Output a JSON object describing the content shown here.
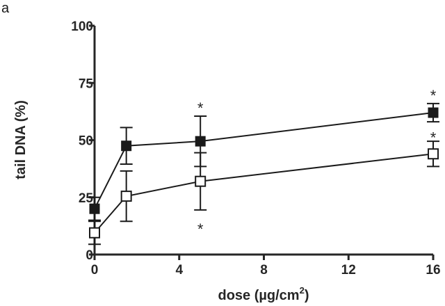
{
  "panel_label": "a",
  "chart_data": {
    "type": "scatter",
    "title": "",
    "xlabel": "dose (µg/cm",
    "xlabel_sup": "2",
    "xlabel_end": ")",
    "ylabel": "tail DNA (%)",
    "xlim": [
      0,
      16
    ],
    "ylim": [
      0,
      100
    ],
    "xticks": [
      0,
      4,
      8,
      12,
      16
    ],
    "yticks": [
      0,
      25,
      50,
      75,
      100
    ],
    "grid": false,
    "legend": "none",
    "series": [
      {
        "marker": "filled-square",
        "color": "#1a1a1a",
        "x": [
          0,
          1.5,
          5,
          16
        ],
        "y": [
          20,
          47.5,
          49.5,
          62
        ],
        "err": [
          5,
          8,
          11,
          4
        ]
      },
      {
        "marker": "open-square",
        "color": "#1a1a1a",
        "x": [
          0,
          1.5,
          5,
          16
        ],
        "y": [
          9.5,
          25.5,
          32,
          44
        ],
        "err": [
          5,
          11,
          12.5,
          5.5
        ]
      }
    ],
    "annotations": [
      {
        "text": "*",
        "x": 5,
        "y": 66,
        "series": 0
      },
      {
        "text": "*",
        "x": 16,
        "y": 71.5,
        "series": 0
      },
      {
        "text": "*",
        "x": 5,
        "y": 13,
        "series": 1
      },
      {
        "text": "*",
        "x": 16,
        "y": 53,
        "series": 1
      }
    ]
  }
}
